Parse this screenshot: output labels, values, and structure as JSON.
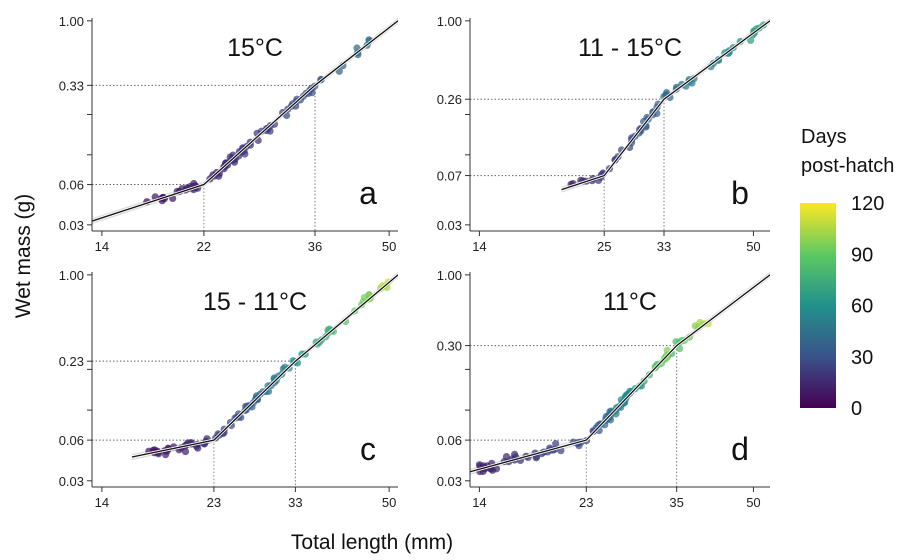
{
  "figure": {
    "ylabel": "Wet mass (g)",
    "xlabel": "Total length (mm)",
    "colorbar": {
      "title_line1": "Days",
      "title_line2": "post-hatch",
      "ticks": [
        "120",
        "90",
        "60",
        "30",
        "0"
      ],
      "range": [
        0,
        120
      ],
      "colormap": "viridis",
      "colors": [
        "#440154",
        "#3b528b",
        "#21918c",
        "#5ec962",
        "#fde725"
      ]
    }
  },
  "chart_data": [
    {
      "type": "scatter",
      "panel_letter": "a",
      "treatment": "15°C",
      "x_scale": "log",
      "y_scale": "log",
      "xlim": [
        13.4,
        52
      ],
      "ylim": [
        0.027,
        1.05
      ],
      "xticks": [
        14,
        22,
        36,
        50
      ],
      "xtick_labels": [
        "14",
        "22",
        "36",
        "50"
      ],
      "yticks": [
        1.0,
        0.33,
        0.06,
        0.03
      ],
      "ytick_labels": [
        "1.00",
        "0.33",
        "0.06",
        "0.03"
      ],
      "breakpoints": [
        {
          "x": 22,
          "y": 0.06
        },
        {
          "x": 36,
          "y": 0.33
        }
      ],
      "fit_line": [
        [
          13.4,
          0.032
        ],
        [
          22,
          0.06
        ],
        [
          36,
          0.33
        ],
        [
          52,
          1.0
        ]
      ],
      "day_range": [
        1,
        45
      ],
      "clusters": [
        {
          "x_range": [
            17,
            21.5
          ],
          "n": 22,
          "day_range": [
            5,
            14
          ]
        },
        {
          "x_range": [
            22.5,
            27
          ],
          "n": 28,
          "day_range": [
            10,
            22
          ]
        },
        {
          "x_range": [
            27,
            36
          ],
          "n": 28,
          "day_range": [
            18,
            32
          ]
        },
        {
          "x_range": [
            36,
            46
          ],
          "n": 10,
          "day_range": [
            30,
            45
          ]
        }
      ]
    },
    {
      "type": "scatter",
      "panel_letter": "b",
      "treatment": "11 - 15°C",
      "x_scale": "log",
      "y_scale": "log",
      "xlim": [
        13.4,
        54
      ],
      "ylim": [
        0.027,
        1.05
      ],
      "xticks": [
        14,
        25,
        33,
        50
      ],
      "xtick_labels": [
        "14",
        "25",
        "33",
        "50"
      ],
      "yticks": [
        1.0,
        0.26,
        0.07,
        0.03
      ],
      "ytick_labels": [
        "1.00",
        "0.26",
        "0.07",
        "0.03"
      ],
      "breakpoints": [
        {
          "x": 25,
          "y": 0.07
        },
        {
          "x": 33,
          "y": 0.26
        }
      ],
      "fit_line": [
        [
          20.5,
          0.055
        ],
        [
          25,
          0.07
        ],
        [
          33,
          0.26
        ],
        [
          54,
          1.0
        ]
      ],
      "day_range": [
        5,
        70
      ],
      "clusters": [
        {
          "x_range": [
            21,
            25
          ],
          "n": 12,
          "day_range": [
            10,
            22
          ]
        },
        {
          "x_range": [
            25.5,
            33
          ],
          "n": 26,
          "day_range": [
            20,
            40
          ]
        },
        {
          "x_range": [
            33,
            53
          ],
          "n": 30,
          "day_range": [
            40,
            70
          ]
        }
      ]
    },
    {
      "type": "scatter",
      "panel_letter": "c",
      "treatment": "15 - 11°C",
      "x_scale": "log",
      "y_scale": "log",
      "xlim": [
        13.4,
        52
      ],
      "ylim": [
        0.027,
        1.05
      ],
      "xticks": [
        14,
        23,
        33,
        50
      ],
      "xtick_labels": [
        "14",
        "23",
        "33",
        "50"
      ],
      "yticks": [
        1.0,
        0.23,
        0.06,
        0.03
      ],
      "ytick_labels": [
        "1.00",
        "0.23",
        "0.06",
        "0.03"
      ],
      "breakpoints": [
        {
          "x": 23,
          "y": 0.06
        },
        {
          "x": 33,
          "y": 0.23
        }
      ],
      "fit_line": [
        [
          16,
          0.045
        ],
        [
          23,
          0.06
        ],
        [
          33,
          0.23
        ],
        [
          52,
          1.0
        ]
      ],
      "day_range": [
        5,
        110
      ],
      "clusters": [
        {
          "x_range": [
            17,
            22.5
          ],
          "n": 28,
          "day_range": [
            6,
            16
          ]
        },
        {
          "x_range": [
            23,
            28
          ],
          "n": 26,
          "day_range": [
            18,
            40
          ]
        },
        {
          "x_range": [
            28,
            35
          ],
          "n": 20,
          "day_range": [
            40,
            65
          ]
        },
        {
          "x_range": [
            36,
            51
          ],
          "n": 24,
          "day_range": [
            70,
            110
          ]
        }
      ]
    },
    {
      "type": "scatter",
      "panel_letter": "d",
      "treatment": "11°C",
      "x_scale": "log",
      "y_scale": "log",
      "xlim": [
        13.4,
        54
      ],
      "ylim": [
        0.027,
        1.05
      ],
      "xticks": [
        14,
        23,
        35,
        50
      ],
      "xtick_labels": [
        "14",
        "23",
        "35",
        "50"
      ],
      "yticks": [
        1.0,
        0.3,
        0.06,
        0.03
      ],
      "ytick_labels": [
        "1.00",
        "0.30",
        "0.06",
        "0.03"
      ],
      "breakpoints": [
        {
          "x": 23,
          "y": 0.06
        },
        {
          "x": 35,
          "y": 0.3
        }
      ],
      "fit_line": [
        [
          13.4,
          0.035
        ],
        [
          23,
          0.06
        ],
        [
          35,
          0.3
        ],
        [
          54,
          1.0
        ]
      ],
      "day_range": [
        10,
        110
      ],
      "clusters": [
        {
          "x_range": [
            14,
            22.5
          ],
          "n": 40,
          "day_range": [
            12,
            28
          ]
        },
        {
          "x_range": [
            23,
            28
          ],
          "n": 36,
          "day_range": [
            25,
            60
          ]
        },
        {
          "x_range": [
            28,
            34
          ],
          "n": 20,
          "day_range": [
            55,
            100
          ]
        },
        {
          "x_range": [
            34,
            41
          ],
          "n": 12,
          "day_range": [
            80,
            110
          ]
        }
      ]
    }
  ]
}
